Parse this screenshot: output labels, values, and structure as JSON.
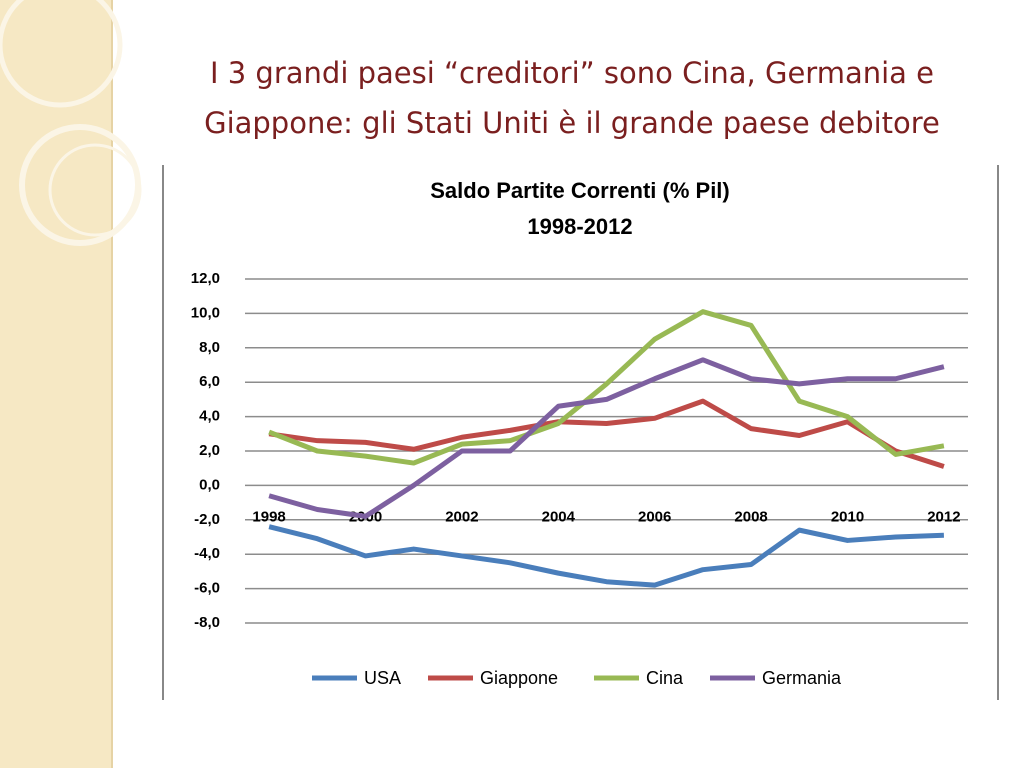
{
  "slide": {
    "title": [
      "I 3 grandi paesi “creditori” sono Cina, Germania e",
      "Giappone: gli Stati Uniti è il grande paese debitore"
    ]
  },
  "chart_data": {
    "type": "line",
    "title": "Saldo Partite Correnti (% Pil)",
    "subtitle": "1998-2012",
    "x": [
      1998,
      1999,
      2000,
      2001,
      2002,
      2003,
      2004,
      2005,
      2006,
      2007,
      2008,
      2009,
      2010,
      2011,
      2012
    ],
    "xlim": [
      1997.5,
      2012.5
    ],
    "xticks": [
      1998,
      2000,
      2002,
      2004,
      2006,
      2008,
      2010,
      2012
    ],
    "ylim": [
      -8,
      12
    ],
    "yticks": [
      {
        "value": -8,
        "label": "-8,0"
      },
      {
        "value": -6,
        "label": "-6,0"
      },
      {
        "value": -4,
        "label": "-4,0"
      },
      {
        "value": -2,
        "label": "-2,0"
      },
      {
        "value": 0,
        "label": "0,0"
      },
      {
        "value": 2,
        "label": "2,0"
      },
      {
        "value": 4,
        "label": "4,0"
      },
      {
        "value": 6,
        "label": "6,0"
      },
      {
        "value": 8,
        "label": "8,0"
      },
      {
        "value": 10,
        "label": "10,0"
      },
      {
        "value": 12,
        "label": "12,0"
      }
    ],
    "grid": true,
    "legend": "bottom",
    "series": [
      {
        "name": "USA",
        "color": "#4a7ebb",
        "values": [
          -2.4,
          -3.1,
          -4.1,
          -3.7,
          -4.1,
          -4.5,
          -5.1,
          -5.6,
          -5.8,
          -4.9,
          -4.6,
          -2.6,
          -3.2,
          -3.0,
          -2.9
        ]
      },
      {
        "name": "Giappone",
        "color": "#be4b48",
        "values": [
          3.0,
          2.6,
          2.5,
          2.1,
          2.8,
          3.2,
          3.7,
          3.6,
          3.9,
          4.9,
          3.3,
          2.9,
          3.7,
          2.0,
          1.1
        ]
      },
      {
        "name": "Cina",
        "color": "#98b954",
        "values": [
          3.1,
          2.0,
          1.7,
          1.3,
          2.4,
          2.6,
          3.6,
          5.9,
          8.5,
          10.1,
          9.3,
          4.9,
          4.0,
          1.8,
          2.3
        ]
      },
      {
        "name": "Germania",
        "color": "#7d60a0",
        "values": [
          -0.6,
          -1.4,
          -1.8,
          0.0,
          2.0,
          2.0,
          4.6,
          5.0,
          6.2,
          7.3,
          6.2,
          5.9,
          6.2,
          6.2,
          6.9
        ]
      }
    ]
  }
}
